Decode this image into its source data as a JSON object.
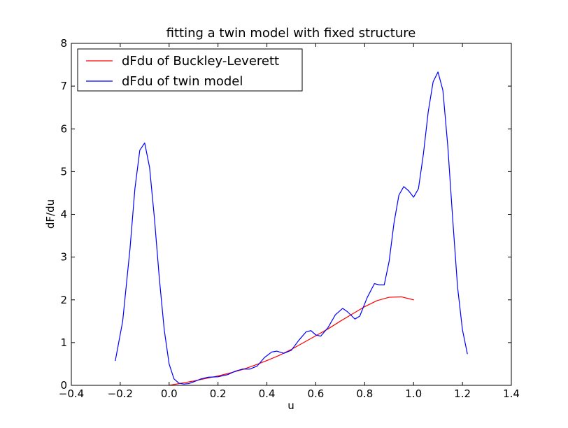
{
  "chart_data": {
    "type": "line",
    "title": "fitting a twin model with fixed structure",
    "xlabel": "u",
    "ylabel": "dF/du",
    "xlim": [
      -0.4,
      1.4
    ],
    "ylim": [
      0,
      8
    ],
    "xticks": [
      "−0.4",
      "−0.2",
      "0.0",
      "0.2",
      "0.4",
      "0.6",
      "0.8",
      "1.0",
      "1.2",
      "1.4"
    ],
    "yticks": [
      "0",
      "1",
      "2",
      "3",
      "4",
      "5",
      "6",
      "7",
      "8"
    ],
    "grid": false,
    "legend_position": "top-left",
    "series": [
      {
        "name": "dFdu of Buckley-Leverett",
        "color": "#ff0000",
        "x": [
          0.0,
          0.05,
          0.1,
          0.15,
          0.2,
          0.25,
          0.3,
          0.35,
          0.4,
          0.45,
          0.5,
          0.55,
          0.6,
          0.65,
          0.7,
          0.75,
          0.8,
          0.85,
          0.9,
          0.95,
          1.0
        ],
        "y": [
          0.0,
          0.05,
          0.1,
          0.16,
          0.22,
          0.29,
          0.37,
          0.47,
          0.58,
          0.7,
          0.84,
          1.0,
          1.16,
          1.32,
          1.5,
          1.67,
          1.84,
          1.98,
          2.06,
          2.07,
          2.0
        ]
      },
      {
        "name": "dFdu of twin model",
        "color": "#0000ff",
        "x": [
          -0.22,
          -0.19,
          -0.16,
          -0.14,
          -0.12,
          -0.1,
          -0.08,
          -0.06,
          -0.04,
          -0.02,
          0.0,
          0.02,
          0.04,
          0.06,
          0.08,
          0.1,
          0.13,
          0.16,
          0.2,
          0.24,
          0.27,
          0.3,
          0.33,
          0.36,
          0.39,
          0.42,
          0.44,
          0.47,
          0.5,
          0.53,
          0.56,
          0.58,
          0.6,
          0.62,
          0.65,
          0.68,
          0.71,
          0.73,
          0.76,
          0.78,
          0.81,
          0.84,
          0.86,
          0.88,
          0.9,
          0.92,
          0.94,
          0.96,
          0.98,
          1.0,
          1.02,
          1.04,
          1.06,
          1.08,
          1.1,
          1.12,
          1.14,
          1.16,
          1.18,
          1.2,
          1.22
        ],
        "y": [
          0.58,
          1.5,
          3.2,
          4.6,
          5.5,
          5.67,
          5.1,
          3.9,
          2.5,
          1.3,
          0.5,
          0.15,
          0.05,
          0.03,
          0.04,
          0.08,
          0.15,
          0.19,
          0.2,
          0.25,
          0.33,
          0.38,
          0.38,
          0.45,
          0.65,
          0.78,
          0.8,
          0.75,
          0.82,
          1.05,
          1.25,
          1.28,
          1.18,
          1.15,
          1.35,
          1.65,
          1.8,
          1.72,
          1.55,
          1.62,
          2.05,
          2.38,
          2.35,
          2.35,
          2.9,
          3.8,
          4.45,
          4.65,
          4.55,
          4.4,
          4.6,
          5.4,
          6.4,
          7.1,
          7.33,
          6.9,
          5.6,
          3.9,
          2.3,
          1.3,
          0.74
        ]
      }
    ]
  }
}
